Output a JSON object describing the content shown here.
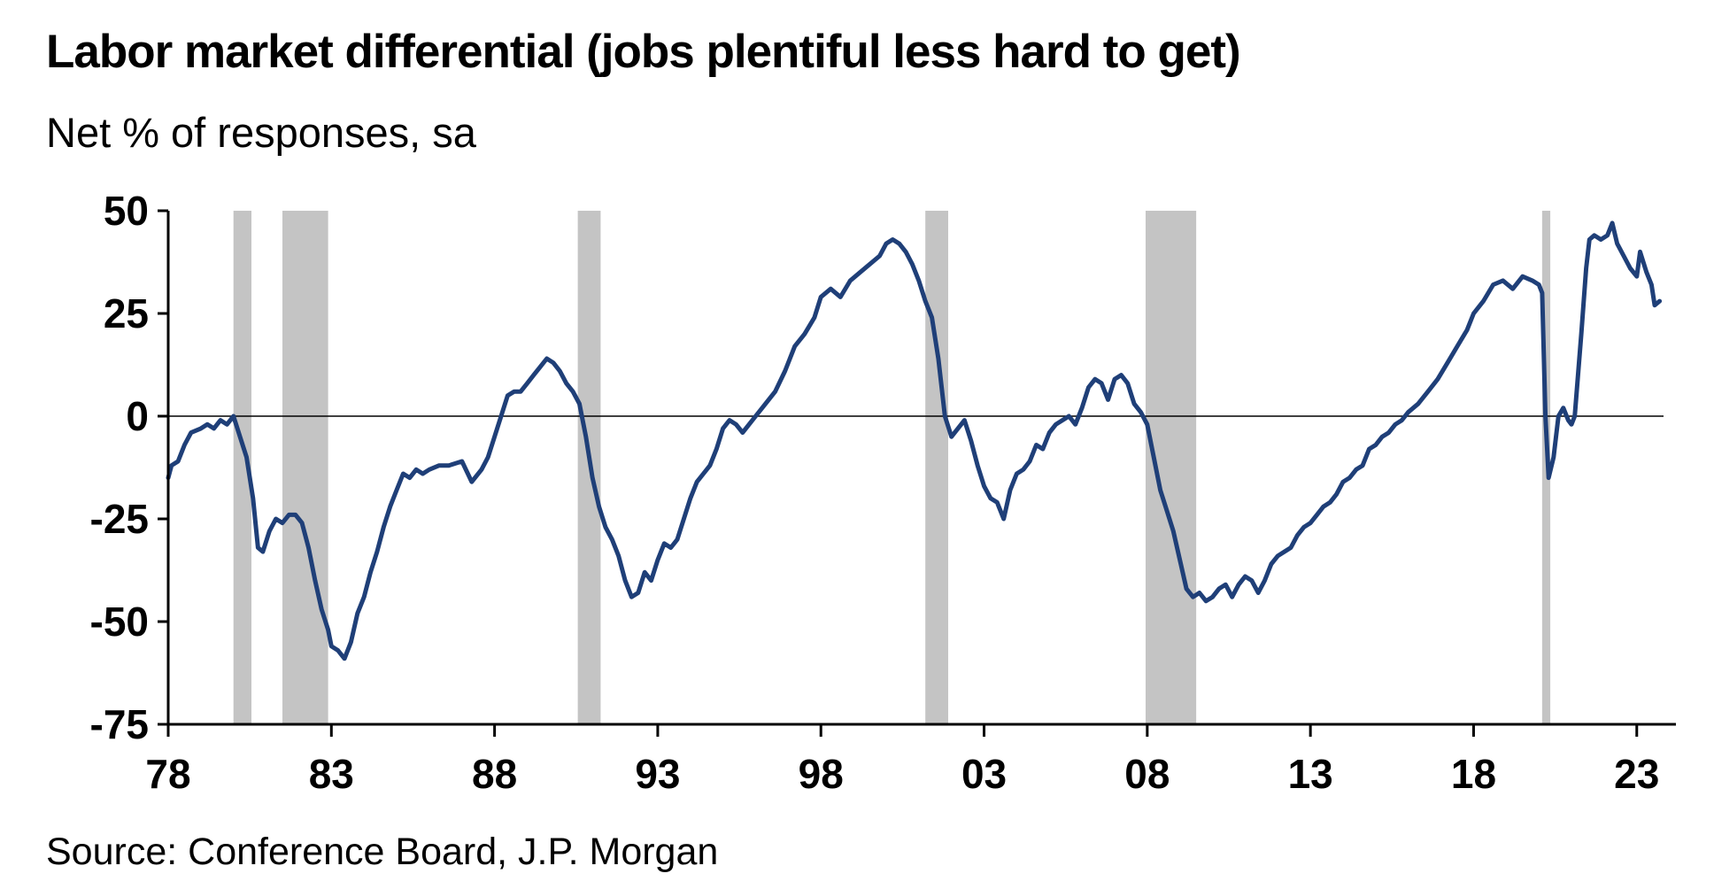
{
  "title": "Labor market differential (jobs plentiful less hard to get)",
  "subtitle": "Net % of responses, sa",
  "source": "Source: Conference Board, J.P. Morgan",
  "chart_data": {
    "type": "line",
    "title": "Labor market differential (jobs plentiful less hard to get)",
    "subtitle": "Net % of responses, sa",
    "xlabel": "",
    "ylabel": "",
    "xlim": [
      1978.0,
      2024.2
    ],
    "ylim": [
      -75,
      50
    ],
    "x_tick_values": [
      1978,
      1983,
      1988,
      1993,
      1998,
      2003,
      2008,
      2013,
      2018,
      2023
    ],
    "x_tick_labels": [
      "78",
      "83",
      "88",
      "93",
      "98",
      "03",
      "08",
      "13",
      "18",
      "23"
    ],
    "y_tick_values": [
      50,
      25,
      0,
      -25,
      -50,
      -75
    ],
    "y_tick_labels": [
      "50",
      "25",
      "0",
      "-25",
      "-50",
      "-75"
    ],
    "zero_line": true,
    "grid": false,
    "legend": "none",
    "line_color": "#1f3f78",
    "shading_color": "#c4c4c4",
    "recession_shading": [
      {
        "start": 1980.0,
        "end": 1980.55
      },
      {
        "start": 1981.5,
        "end": 1982.9
      },
      {
        "start": 1990.55,
        "end": 1991.25
      },
      {
        "start": 2001.2,
        "end": 2001.9
      },
      {
        "start": 2007.95,
        "end": 2009.5
      },
      {
        "start": 2020.1,
        "end": 2020.35
      }
    ],
    "series": [
      {
        "color": "#1f3f78",
        "points": [
          [
            1978.0,
            -15
          ],
          [
            1978.1,
            -12
          ],
          [
            1978.3,
            -11
          ],
          [
            1978.5,
            -7
          ],
          [
            1978.7,
            -4
          ],
          [
            1979.0,
            -3
          ],
          [
            1979.2,
            -2
          ],
          [
            1979.4,
            -3
          ],
          [
            1979.6,
            -1
          ],
          [
            1979.8,
            -2
          ],
          [
            1980.0,
            0
          ],
          [
            1980.2,
            -5
          ],
          [
            1980.4,
            -10
          ],
          [
            1980.6,
            -20
          ],
          [
            1980.75,
            -32
          ],
          [
            1980.9,
            -33
          ],
          [
            1981.1,
            -28
          ],
          [
            1981.3,
            -25
          ],
          [
            1981.5,
            -26
          ],
          [
            1981.7,
            -24
          ],
          [
            1981.9,
            -24
          ],
          [
            1982.1,
            -26
          ],
          [
            1982.3,
            -32
          ],
          [
            1982.5,
            -40
          ],
          [
            1982.7,
            -47
          ],
          [
            1982.9,
            -52
          ],
          [
            1983.0,
            -56
          ],
          [
            1983.2,
            -57
          ],
          [
            1983.4,
            -59
          ],
          [
            1983.6,
            -55
          ],
          [
            1983.8,
            -48
          ],
          [
            1984.0,
            -44
          ],
          [
            1984.2,
            -38
          ],
          [
            1984.4,
            -33
          ],
          [
            1984.6,
            -27
          ],
          [
            1984.8,
            -22
          ],
          [
            1985.0,
            -18
          ],
          [
            1985.2,
            -14
          ],
          [
            1985.4,
            -15
          ],
          [
            1985.6,
            -13
          ],
          [
            1985.8,
            -14
          ],
          [
            1986.0,
            -13
          ],
          [
            1986.3,
            -12
          ],
          [
            1986.6,
            -12
          ],
          [
            1987.0,
            -11
          ],
          [
            1987.3,
            -16
          ],
          [
            1987.6,
            -13
          ],
          [
            1987.8,
            -10
          ],
          [
            1988.0,
            -5
          ],
          [
            1988.2,
            0
          ],
          [
            1988.4,
            5
          ],
          [
            1988.6,
            6
          ],
          [
            1988.8,
            6
          ],
          [
            1989.0,
            8
          ],
          [
            1989.2,
            10
          ],
          [
            1989.4,
            12
          ],
          [
            1989.6,
            14
          ],
          [
            1989.8,
            13
          ],
          [
            1990.0,
            11
          ],
          [
            1990.2,
            8
          ],
          [
            1990.4,
            6
          ],
          [
            1990.6,
            3
          ],
          [
            1990.8,
            -5
          ],
          [
            1991.0,
            -15
          ],
          [
            1991.2,
            -22
          ],
          [
            1991.4,
            -27
          ],
          [
            1991.6,
            -30
          ],
          [
            1991.8,
            -34
          ],
          [
            1992.0,
            -40
          ],
          [
            1992.2,
            -44
          ],
          [
            1992.4,
            -43
          ],
          [
            1992.6,
            -38
          ],
          [
            1992.8,
            -40
          ],
          [
            1993.0,
            -35
          ],
          [
            1993.2,
            -31
          ],
          [
            1993.4,
            -32
          ],
          [
            1993.6,
            -30
          ],
          [
            1993.8,
            -25
          ],
          [
            1994.0,
            -20
          ],
          [
            1994.2,
            -16
          ],
          [
            1994.4,
            -14
          ],
          [
            1994.6,
            -12
          ],
          [
            1994.8,
            -8
          ],
          [
            1995.0,
            -3
          ],
          [
            1995.2,
            -1
          ],
          [
            1995.4,
            -2
          ],
          [
            1995.6,
            -4
          ],
          [
            1995.8,
            -2
          ],
          [
            1996.0,
            0
          ],
          [
            1996.3,
            3
          ],
          [
            1996.6,
            6
          ],
          [
            1996.9,
            11
          ],
          [
            1997.2,
            17
          ],
          [
            1997.5,
            20
          ],
          [
            1997.8,
            24
          ],
          [
            1998.0,
            29
          ],
          [
            1998.3,
            31
          ],
          [
            1998.6,
            29
          ],
          [
            1998.9,
            33
          ],
          [
            1999.2,
            35
          ],
          [
            1999.5,
            37
          ],
          [
            1999.8,
            39
          ],
          [
            2000.0,
            42
          ],
          [
            2000.2,
            43
          ],
          [
            2000.4,
            42
          ],
          [
            2000.6,
            40
          ],
          [
            2000.8,
            37
          ],
          [
            2001.0,
            33
          ],
          [
            2001.2,
            28
          ],
          [
            2001.4,
            24
          ],
          [
            2001.6,
            14
          ],
          [
            2001.8,
            0
          ],
          [
            2002.0,
            -5
          ],
          [
            2002.2,
            -3
          ],
          [
            2002.4,
            -1
          ],
          [
            2002.6,
            -6
          ],
          [
            2002.8,
            -12
          ],
          [
            2003.0,
            -17
          ],
          [
            2003.2,
            -20
          ],
          [
            2003.4,
            -21
          ],
          [
            2003.6,
            -25
          ],
          [
            2003.8,
            -18
          ],
          [
            2004.0,
            -14
          ],
          [
            2004.2,
            -13
          ],
          [
            2004.4,
            -11
          ],
          [
            2004.6,
            -7
          ],
          [
            2004.8,
            -8
          ],
          [
            2005.0,
            -4
          ],
          [
            2005.2,
            -2
          ],
          [
            2005.4,
            -1
          ],
          [
            2005.6,
            0
          ],
          [
            2005.8,
            -2
          ],
          [
            2006.0,
            2
          ],
          [
            2006.2,
            7
          ],
          [
            2006.4,
            9
          ],
          [
            2006.6,
            8
          ],
          [
            2006.8,
            4
          ],
          [
            2007.0,
            9
          ],
          [
            2007.2,
            10
          ],
          [
            2007.4,
            8
          ],
          [
            2007.6,
            3
          ],
          [
            2007.8,
            1
          ],
          [
            2008.0,
            -2
          ],
          [
            2008.2,
            -10
          ],
          [
            2008.4,
            -18
          ],
          [
            2008.6,
            -23
          ],
          [
            2008.8,
            -28
          ],
          [
            2009.0,
            -35
          ],
          [
            2009.2,
            -42
          ],
          [
            2009.4,
            -44
          ],
          [
            2009.6,
            -43
          ],
          [
            2009.8,
            -45
          ],
          [
            2010.0,
            -44
          ],
          [
            2010.2,
            -42
          ],
          [
            2010.4,
            -41
          ],
          [
            2010.6,
            -44
          ],
          [
            2010.8,
            -41
          ],
          [
            2011.0,
            -39
          ],
          [
            2011.2,
            -40
          ],
          [
            2011.4,
            -43
          ],
          [
            2011.6,
            -40
          ],
          [
            2011.8,
            -36
          ],
          [
            2012.0,
            -34
          ],
          [
            2012.2,
            -33
          ],
          [
            2012.4,
            -32
          ],
          [
            2012.6,
            -29
          ],
          [
            2012.8,
            -27
          ],
          [
            2013.0,
            -26
          ],
          [
            2013.2,
            -24
          ],
          [
            2013.4,
            -22
          ],
          [
            2013.6,
            -21
          ],
          [
            2013.8,
            -19
          ],
          [
            2014.0,
            -16
          ],
          [
            2014.2,
            -15
          ],
          [
            2014.4,
            -13
          ],
          [
            2014.6,
            -12
          ],
          [
            2014.8,
            -8
          ],
          [
            2015.0,
            -7
          ],
          [
            2015.2,
            -5
          ],
          [
            2015.4,
            -4
          ],
          [
            2015.6,
            -2
          ],
          [
            2015.8,
            -1
          ],
          [
            2016.0,
            1
          ],
          [
            2016.3,
            3
          ],
          [
            2016.6,
            6
          ],
          [
            2016.9,
            9
          ],
          [
            2017.2,
            13
          ],
          [
            2017.5,
            17
          ],
          [
            2017.8,
            21
          ],
          [
            2018.0,
            25
          ],
          [
            2018.3,
            28
          ],
          [
            2018.6,
            32
          ],
          [
            2018.9,
            33
          ],
          [
            2019.2,
            31
          ],
          [
            2019.5,
            34
          ],
          [
            2019.8,
            33
          ],
          [
            2020.0,
            32
          ],
          [
            2020.1,
            30
          ],
          [
            2020.2,
            0
          ],
          [
            2020.3,
            -15
          ],
          [
            2020.45,
            -10
          ],
          [
            2020.6,
            0
          ],
          [
            2020.75,
            2
          ],
          [
            2020.9,
            -1
          ],
          [
            2021.0,
            -2
          ],
          [
            2021.1,
            0
          ],
          [
            2021.3,
            20
          ],
          [
            2021.45,
            36
          ],
          [
            2021.55,
            43
          ],
          [
            2021.7,
            44
          ],
          [
            2021.9,
            43
          ],
          [
            2022.1,
            44
          ],
          [
            2022.25,
            47
          ],
          [
            2022.4,
            42
          ],
          [
            2022.6,
            39
          ],
          [
            2022.8,
            36
          ],
          [
            2023.0,
            34
          ],
          [
            2023.1,
            40
          ],
          [
            2023.3,
            35
          ],
          [
            2023.45,
            32
          ],
          [
            2023.55,
            27
          ],
          [
            2023.7,
            28
          ]
        ]
      }
    ]
  }
}
